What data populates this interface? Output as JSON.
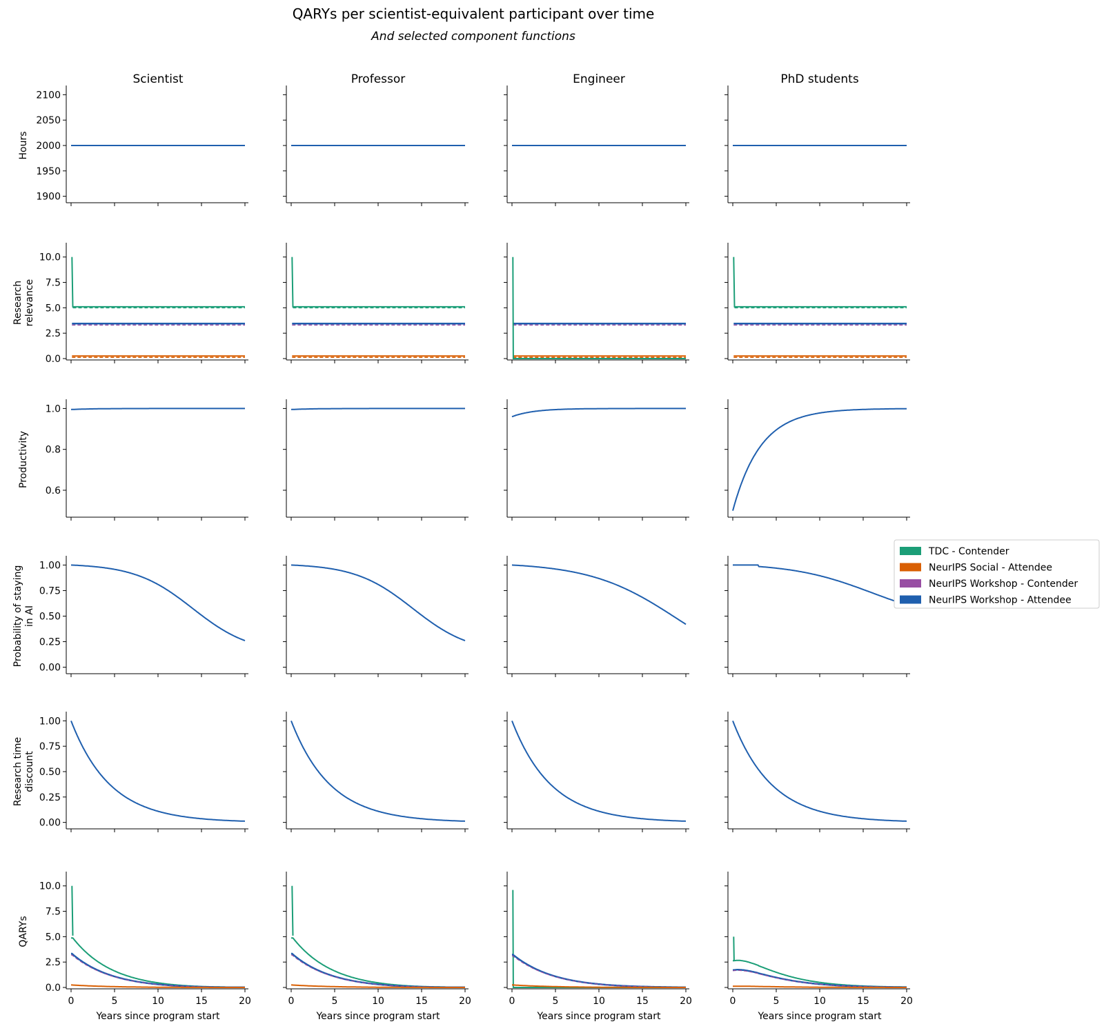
{
  "title": "QARYs per scientist-equivalent participant over time",
  "subtitle": "And selected component functions",
  "legend": [
    {
      "label": "TDC - Contender",
      "color": "#1b9e77"
    },
    {
      "label": "NeurIPS Social - Attendee",
      "color": "#d95f02"
    },
    {
      "label": "NeurIPS Workshop - Contender",
      "color": "#984ea3"
    },
    {
      "label": "NeurIPS Workshop - Attendee",
      "color": "#1f5fae"
    }
  ],
  "chart_data": {
    "type": "line",
    "columns": [
      "Scientist",
      "Professor",
      "Engineer",
      "PhD students"
    ],
    "xlabel": "Years since program start",
    "xlim": [
      0,
      20
    ],
    "xticks": [
      0,
      5,
      10,
      15,
      20
    ],
    "rows": [
      {
        "ylabel": "Hours",
        "ylim": [
          1890,
          2110
        ],
        "yticks": [
          "1900",
          "1950",
          "2000",
          "2050",
          "2100"
        ],
        "series_note": "All programs constant at 2000 hours",
        "values": {
          "all": 2000
        }
      },
      {
        "ylabel": "Research relevance",
        "ylim": [
          0,
          11
        ],
        "yticks": [
          "0.0",
          "2.5",
          "5.0",
          "7.5",
          "10.0"
        ],
        "values": {
          "TDC - Contender": {
            "initial": 10,
            "after": 5.1
          },
          "NeurIPS Workshop - Attendee": 3.4,
          "NeurIPS Workshop - Contender": 3.4,
          "NeurIPS Social - Attendee": 0.25,
          "Engineer TDC - Contender": {
            "initial": 10,
            "after": 0
          }
        }
      },
      {
        "ylabel": "Productivity",
        "ylim": [
          0.475,
          1.025
        ],
        "yticks": [
          "0.6",
          "0.8",
          "1.0"
        ],
        "values": {
          "Scientist": {
            "start": 0.995,
            "end": 1.0
          },
          "Professor": {
            "start": 0.995,
            "end": 1.0
          },
          "Engineer": {
            "start": 0.96,
            "end": 1.0
          },
          "PhD students": {
            "start": 0.5,
            "end": 1.0
          }
        }
      },
      {
        "ylabel": "Probability of staying in AI",
        "ylim": [
          -0.05,
          1.05
        ],
        "yticks": [
          "0.00",
          "0.25",
          "0.50",
          "0.75",
          "1.00"
        ],
        "values": {
          "Scientist": {
            "start": 1.0,
            "end": 0.26
          },
          "Professor": {
            "start": 1.0,
            "end": 0.26
          },
          "Engineer": {
            "start": 1.0,
            "end": 0.42
          },
          "PhD students": {
            "start": 1.0,
            "end": 0.61
          }
        }
      },
      {
        "ylabel": "Research time discount",
        "ylim": [
          -0.05,
          1.05
        ],
        "yticks": [
          "0.00",
          "0.25",
          "0.50",
          "0.75",
          "1.00"
        ],
        "values": {
          "all": {
            "start": 1.0,
            "end": 0.012
          }
        }
      },
      {
        "ylabel": "QARYs",
        "ylim": [
          0,
          11
        ],
        "yticks": [
          "0.0",
          "2.5",
          "5.0",
          "7.5",
          "10.0"
        ],
        "values": {
          "Scientist": {
            "TDC - Contender": 10,
            "NeurIPS Workshop - Attendee": 3.4,
            "NeurIPS Social - Attendee": 0.25
          },
          "Professor": {
            "TDC - Contender": 10,
            "NeurIPS Workshop - Attendee": 3.4,
            "NeurIPS Social - Attendee": 0.25
          },
          "Engineer": {
            "TDC - Contender": 9.6,
            "NeurIPS Workshop - Attendee": 3.3,
            "NeurIPS Social - Attendee": 0.25
          },
          "PhD students": {
            "TDC - Contender": 5.0,
            "NeurIPS Workshop - Attendee": 1.7,
            "NeurIPS Social - Attendee": 0.12
          }
        }
      }
    ]
  }
}
